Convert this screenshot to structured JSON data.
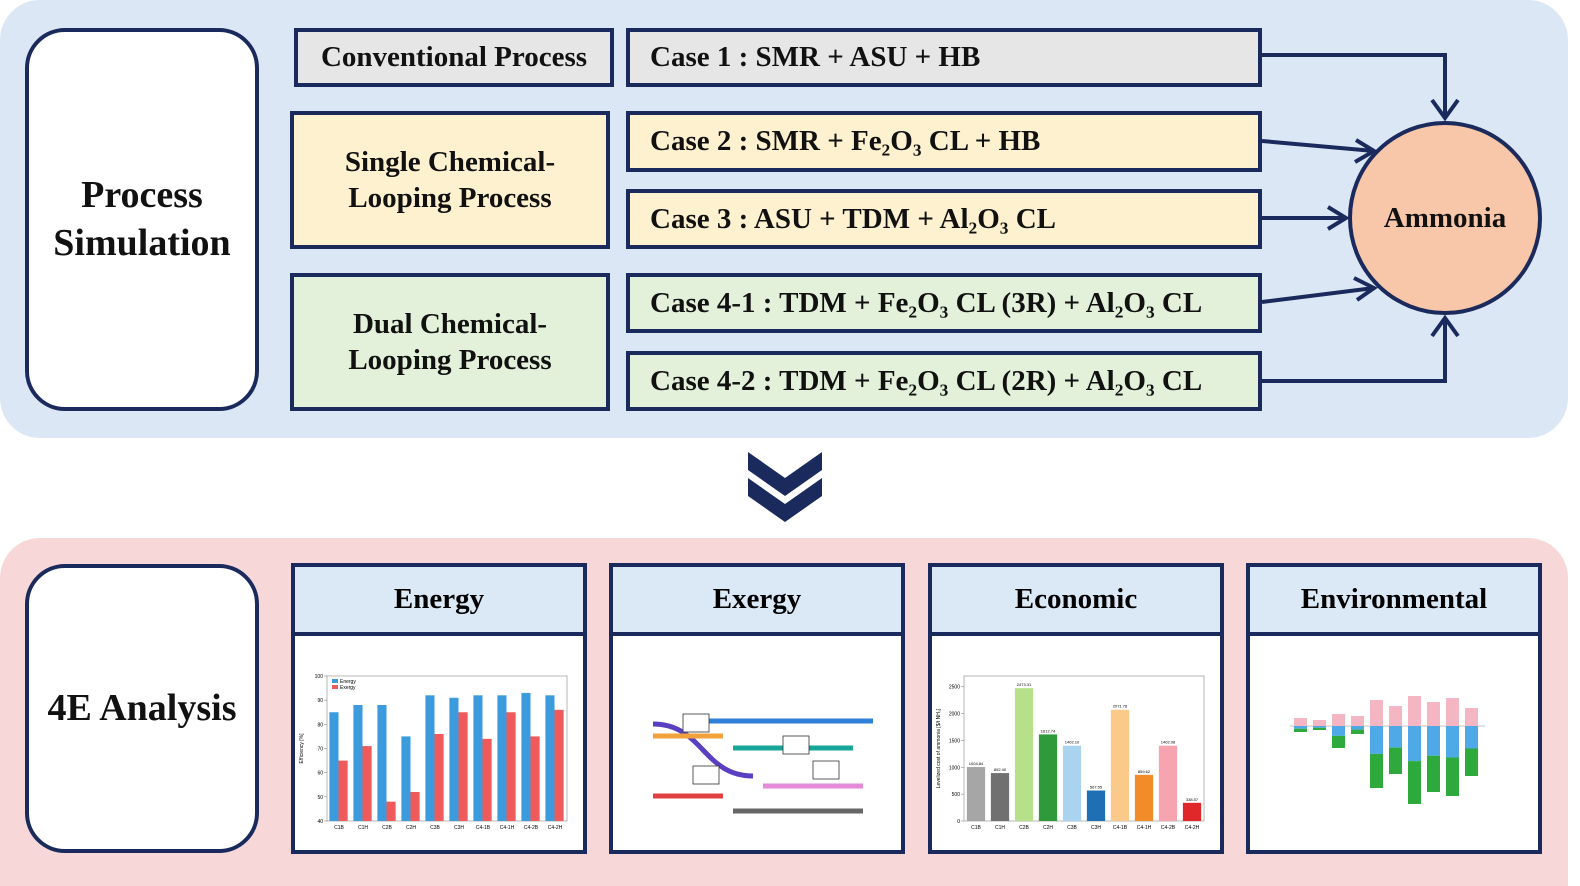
{
  "simulation": {
    "label": "Process Simulation",
    "groups": [
      "Conventional Process",
      "Single Chemical-Looping Process",
      "Dual Chemical-Looping Process"
    ],
    "cases": [
      "Case 1 : SMR + ASU + HB",
      "Case 2 : SMR + Fe₂O₃ CL + HB",
      "Case 3 : ASU + TDM + Al₂O₃ CL",
      "Case 4-1 : TDM + Fe₂O₃ CL (3R) + Al₂O₃ CL",
      "Case 4-2 : TDM + Fe₂O₃ CL (2R) + Al₂O₃ CL"
    ],
    "product": "Ammonia"
  },
  "analysis": {
    "label": "4E Analysis",
    "panels": [
      {
        "title": "Energy",
        "chart": {
          "type": "bar",
          "y_label": "Efficiency [%]",
          "categories": [
            "C1B",
            "C1H",
            "C2B",
            "C2H",
            "C3B",
            "C3H",
            "C4-1B",
            "C4-1H",
            "C4-2B",
            "C4-2H"
          ],
          "series": [
            {
              "name": "Energy",
              "color": "#3b9bdc",
              "values": [
                85,
                88,
                88,
                75,
                92,
                91,
                92,
                92,
                93,
                92
              ]
            },
            {
              "name": "Exergy",
              "color": "#f05a5a",
              "values": [
                65,
                71,
                48,
                52,
                76,
                85,
                74,
                85,
                75,
                86
              ]
            }
          ],
          "ylim": [
            40,
            100
          ],
          "yticks": [
            40,
            50,
            60,
            70,
            80,
            90,
            100
          ]
        }
      },
      {
        "title": "Exergy"
      },
      {
        "title": "Economic",
        "chart": {
          "type": "bar",
          "y_label": "Levelized cost of ammonia [$/t NH₃]",
          "categories": [
            "C1B",
            "C1H",
            "C2B",
            "C2H",
            "C3B",
            "C3H",
            "C4-1B",
            "C4-1H",
            "C4-2B",
            "C4-2H"
          ],
          "values": [
            1004.84,
            892.4,
            2473.31,
            1612.74,
            1402.1,
            567.55,
            2071.78,
            859.62,
            1402.08,
            338.57
          ],
          "value_labels": [
            "1004.84",
            "892.40",
            "2473.31",
            "1612.74",
            "1402.10",
            "567.55",
            "2071.78",
            "859.62",
            "1402.08",
            "338.57"
          ],
          "colors": [
            "#a6a6a6",
            "#707070",
            "#b7e08a",
            "#2e9a3a",
            "#a9d3ef",
            "#1f6fb5",
            "#fbc98a",
            "#f28c28",
            "#f6a5b0",
            "#e0282a"
          ],
          "ylim": [
            0,
            2700
          ],
          "yticks": [
            0,
            500,
            1000,
            1500,
            2000,
            2500
          ]
        }
      },
      {
        "title": "Environmental"
      }
    ]
  }
}
